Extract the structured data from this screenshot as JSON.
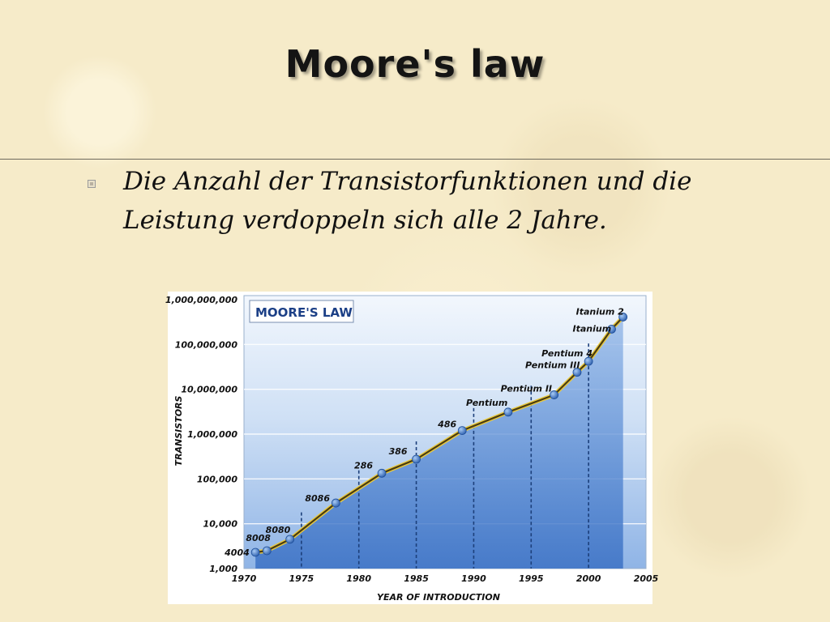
{
  "slide": {
    "title": "Moore's law",
    "bullet": "Die Anzahl der Transistorfunktionen und die Leistung verdoppeln sich alle 2 Jahre."
  },
  "chart_data": {
    "type": "line",
    "title": "MOORE'S LAW",
    "xlabel": "YEAR OF INTRODUCTION",
    "ylabel": "TRANSISTORS",
    "yscale": "log",
    "xlim": [
      1970,
      2005
    ],
    "ylim": [
      1000,
      1000000000
    ],
    "x_ticks": [
      "1970",
      "1975",
      "1980",
      "1985",
      "1990",
      "1995",
      "2000",
      "2005"
    ],
    "y_ticks": [
      "1,000",
      "10,000",
      "100,000",
      "1,000,000",
      "10,000,000",
      "100,000,000",
      "1,000,000,000"
    ],
    "grid": "horizontal",
    "points": [
      {
        "label": "4004",
        "x": 1971,
        "y": 2300
      },
      {
        "label": "8008",
        "x": 1972,
        "y": 2500
      },
      {
        "label": "8080",
        "x": 1974,
        "y": 4500
      },
      {
        "label": "8086",
        "x": 1978,
        "y": 29000
      },
      {
        "label": "286",
        "x": 1982,
        "y": 134000
      },
      {
        "label": "386",
        "x": 1985,
        "y": 275000
      },
      {
        "label": "486",
        "x": 1989,
        "y": 1200000
      },
      {
        "label": "Pentium",
        "x": 1993,
        "y": 3100000
      },
      {
        "label": "Pentium II",
        "x": 1997,
        "y": 7500000
      },
      {
        "label": "Pentium III",
        "x": 1999,
        "y": 24000000
      },
      {
        "label": "Pentium 4",
        "x": 2000,
        "y": 42000000
      },
      {
        "label": "Itanium",
        "x": 2002,
        "y": 220000000
      },
      {
        "label": "Itanium 2",
        "x": 2003,
        "y": 410000000
      }
    ],
    "colors": {
      "line": "#4a3c10",
      "line_glow": "#e8c940",
      "marker": "#3d72c9",
      "plot_top": "#f2f7fd",
      "plot_bottom": "#5a8ed6",
      "title_box": "#ffffff",
      "title_text": "#1b3f86"
    }
  }
}
